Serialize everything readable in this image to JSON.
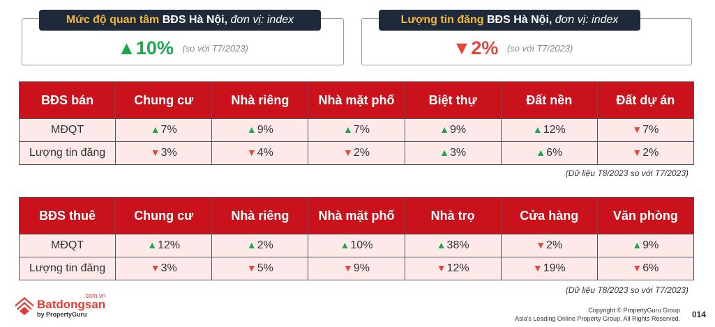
{
  "kpis": [
    {
      "label_highlight": "Mức độ quan tâm",
      "label_bold": "BĐS Hà Nội,",
      "label_italic": "đơn vị: index",
      "arrow": "▲",
      "value": "10%",
      "direction": "up",
      "compare": "(so với T7/2023)"
    },
    {
      "label_highlight": "Lượng tin đăng",
      "label_bold": "BĐS Hà Nội,",
      "label_italic": "đơn vị: index",
      "arrow": "▼",
      "value": "2%",
      "direction": "down",
      "compare": "(so với T7/2023)"
    }
  ],
  "sale_table": {
    "headers": [
      "BĐS bán",
      "Chung cư",
      "Nhà riêng",
      "Nhà mặt phố",
      "Biệt thự",
      "Đất nền",
      "Đất dự án"
    ],
    "rows": [
      {
        "label": "MĐQT",
        "cells": [
          {
            "arrow": "▲",
            "value": "7%",
            "dir": "up"
          },
          {
            "arrow": "▲",
            "value": "9%",
            "dir": "up"
          },
          {
            "arrow": "▲",
            "value": "7%",
            "dir": "up"
          },
          {
            "arrow": "▲",
            "value": "9%",
            "dir": "up"
          },
          {
            "arrow": "▲",
            "value": "12%",
            "dir": "up"
          },
          {
            "arrow": "▼",
            "value": "7%",
            "dir": "down"
          }
        ]
      },
      {
        "label": "Lượng tin đăng",
        "cells": [
          {
            "arrow": "▼",
            "value": "3%",
            "dir": "down"
          },
          {
            "arrow": "▼",
            "value": "4%",
            "dir": "down"
          },
          {
            "arrow": "▼",
            "value": "2%",
            "dir": "down"
          },
          {
            "arrow": "▲",
            "value": "3%",
            "dir": "up"
          },
          {
            "arrow": "▲",
            "value": "6%",
            "dir": "up"
          },
          {
            "arrow": "▼",
            "value": "2%",
            "dir": "down"
          }
        ]
      }
    ],
    "note": "(Dữ liệu T8/2023 so với T7/2023)"
  },
  "rent_table": {
    "headers": [
      "BĐS thuê",
      "Chung cư",
      "Nhà riêng",
      "Nhà mặt phố",
      "Nhà trọ",
      "Cửa hàng",
      "Văn phòng"
    ],
    "rows": [
      {
        "label": "MĐQT",
        "cells": [
          {
            "arrow": "▲",
            "value": "12%",
            "dir": "up"
          },
          {
            "arrow": "▲",
            "value": "2%",
            "dir": "up"
          },
          {
            "arrow": "▲",
            "value": "10%",
            "dir": "up"
          },
          {
            "arrow": "▲",
            "value": "38%",
            "dir": "up"
          },
          {
            "arrow": "▼",
            "value": "2%",
            "dir": "down"
          },
          {
            "arrow": "▲",
            "value": "9%",
            "dir": "up"
          }
        ]
      },
      {
        "label": "Lượng tin đăng",
        "cells": [
          {
            "arrow": "▼",
            "value": "3%",
            "dir": "down"
          },
          {
            "arrow": "▼",
            "value": "5%",
            "dir": "down"
          },
          {
            "arrow": "▼",
            "value": "9%",
            "dir": "down"
          },
          {
            "arrow": "▼",
            "value": "12%",
            "dir": "down"
          },
          {
            "arrow": "▼",
            "value": "19%",
            "dir": "down"
          },
          {
            "arrow": "▼",
            "value": "6%",
            "dir": "down"
          }
        ]
      }
    ],
    "note": "(Dữ liệu T8/2023 so với T7/2023)"
  },
  "footer": {
    "logo_brand": "Batdongsan",
    "logo_domain": ".com.vn",
    "logo_by": "by PropertyGuru",
    "copyright_line1": "Copyright © PropertyGuru Group",
    "copyright_line2": "Asia's Leading Online Property Group. All Rights Reserved.",
    "page_number": "014"
  },
  "colors": {
    "header_red": "#c9121b",
    "cell_pink": "#fde9e8",
    "up_green": "#1fa64a",
    "down_red": "#e0483e",
    "label_navy": "#1e2a3a",
    "label_gold": "#f3b83a"
  },
  "icons": {
    "up": "triangle-up-icon",
    "down": "triangle-down-icon",
    "logo": "batdongsan-logo-icon"
  }
}
